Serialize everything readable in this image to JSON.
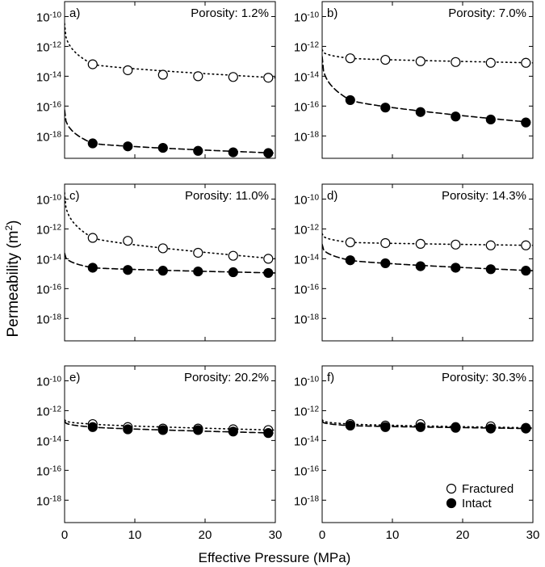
{
  "figure": {
    "ylabel_base": "Permeability (m",
    "ylabel_sup": "2",
    "ylabel_end": ")",
    "xlabel": "Effective Pressure (MPa)",
    "xticks": [
      "0",
      "10",
      "20",
      "30"
    ],
    "yticks": [
      {
        "exp": -10,
        "base": "10",
        "sup": "-10"
      },
      {
        "exp": -12,
        "base": "10",
        "sup": "-12"
      },
      {
        "exp": -14,
        "base": "10",
        "sup": "-14"
      },
      {
        "exp": -16,
        "base": "10",
        "sup": "-16"
      },
      {
        "exp": -18,
        "base": "10",
        "sup": "-18"
      }
    ],
    "legend": {
      "position": "bottom-right of panel f",
      "items": [
        {
          "label": "Fractured",
          "marker": "open-circle"
        },
        {
          "label": "Intact",
          "marker": "filled-circle"
        }
      ]
    }
  },
  "chart_data": [
    {
      "panel": "a)",
      "title": "Porosity: 1.2%",
      "type": "scatter",
      "xlim": [
        0,
        30
      ],
      "ylim_log10": [
        -19.5,
        -9
      ],
      "yscale": "log",
      "series": [
        {
          "name": "Fractured",
          "marker": "open-circle",
          "fit": "dotted",
          "x": [
            4,
            9,
            14,
            19,
            24,
            29
          ],
          "log10_y": [
            -13.2,
            -13.6,
            -13.9,
            -14.0,
            -14.05,
            -14.1
          ],
          "fit_log10_y_at_0": -10.4
        },
        {
          "name": "Intact",
          "marker": "filled-circle",
          "fit": "dashed",
          "x": [
            4,
            9,
            14,
            19,
            24,
            29
          ],
          "log10_y": [
            -18.5,
            -18.7,
            -18.8,
            -19.0,
            -19.1,
            -19.15
          ],
          "fit_log10_y_at_0": -16.2
        }
      ]
    },
    {
      "panel": "b)",
      "title": "Porosity: 7.0%",
      "type": "scatter",
      "xlim": [
        0,
        30
      ],
      "ylim_log10": [
        -19.5,
        -9
      ],
      "yscale": "log",
      "series": [
        {
          "name": "Fractured",
          "marker": "open-circle",
          "fit": "dotted",
          "x": [
            4,
            9,
            14,
            19,
            24,
            29
          ],
          "log10_y": [
            -12.8,
            -12.9,
            -13.0,
            -13.05,
            -13.1,
            -13.1
          ],
          "fit_log10_y_at_0": -12.2
        },
        {
          "name": "Intact",
          "marker": "filled-circle",
          "fit": "dashed",
          "x": [
            4,
            9,
            14,
            19,
            24,
            29
          ],
          "log10_y": [
            -15.6,
            -16.1,
            -16.4,
            -16.7,
            -16.9,
            -17.1
          ],
          "fit_log10_y_at_0": -12.6
        }
      ]
    },
    {
      "panel": "c)",
      "title": "Porosity: 11.0%",
      "type": "scatter",
      "xlim": [
        0,
        30
      ],
      "ylim_log10": [
        -19.5,
        -9
      ],
      "yscale": "log",
      "series": [
        {
          "name": "Fractured",
          "marker": "open-circle",
          "fit": "dotted",
          "x": [
            4,
            9,
            14,
            19,
            24,
            29
          ],
          "log10_y": [
            -12.6,
            -12.8,
            -13.3,
            -13.6,
            -13.8,
            -14.0
          ],
          "fit_log10_y_at_0": -9.5
        },
        {
          "name": "Intact",
          "marker": "filled-circle",
          "fit": "dashed",
          "x": [
            4,
            9,
            14,
            19,
            24,
            29
          ],
          "log10_y": [
            -14.6,
            -14.75,
            -14.8,
            -14.85,
            -14.9,
            -14.95
          ],
          "fit_log10_y_at_0": -13.6
        }
      ]
    },
    {
      "panel": "d)",
      "title": "Porosity: 14.3%",
      "type": "scatter",
      "xlim": [
        0,
        30
      ],
      "ylim_log10": [
        -19.5,
        -9
      ],
      "yscale": "log",
      "series": [
        {
          "name": "Fractured",
          "marker": "open-circle",
          "fit": "dotted",
          "x": [
            4,
            9,
            14,
            19,
            24,
            29
          ],
          "log10_y": [
            -12.9,
            -12.95,
            -13.0,
            -13.05,
            -13.1,
            -13.1
          ],
          "fit_log10_y_at_0": -12.3
        },
        {
          "name": "Intact",
          "marker": "filled-circle",
          "fit": "dashed",
          "x": [
            4,
            9,
            14,
            19,
            24,
            29
          ],
          "log10_y": [
            -14.1,
            -14.3,
            -14.5,
            -14.6,
            -14.7,
            -14.8
          ],
          "fit_log10_y_at_0": -13.0
        }
      ]
    },
    {
      "panel": "e)",
      "title": "Porosity: 20.2%",
      "type": "scatter",
      "xlim": [
        0,
        30
      ],
      "ylim_log10": [
        -19.5,
        -9
      ],
      "yscale": "log",
      "series": [
        {
          "name": "Fractured",
          "marker": "open-circle",
          "fit": "dotted",
          "x": [
            4,
            9,
            14,
            19,
            24,
            29
          ],
          "log10_y": [
            -12.9,
            -13.1,
            -13.2,
            -13.2,
            -13.25,
            -13.3
          ],
          "fit_log10_y_at_0": -12.6
        },
        {
          "name": "Intact",
          "marker": "filled-circle",
          "fit": "dashed",
          "x": [
            4,
            9,
            14,
            19,
            24,
            29
          ],
          "log10_y": [
            -13.1,
            -13.25,
            -13.3,
            -13.3,
            -13.4,
            -13.5
          ],
          "fit_log10_y_at_0": -12.7
        }
      ]
    },
    {
      "panel": "f)",
      "title": "Porosity: 30.3%",
      "type": "scatter",
      "xlim": [
        0,
        30
      ],
      "ylim_log10": [
        -19.5,
        -9
      ],
      "yscale": "log",
      "series": [
        {
          "name": "Fractured",
          "marker": "open-circle",
          "fit": "dotted",
          "x": [
            4,
            9,
            14,
            19,
            24,
            29
          ],
          "log10_y": [
            -12.9,
            -13.0,
            -12.9,
            -13.1,
            -13.05,
            -13.15
          ],
          "fit_log10_y_at_0": -12.6
        },
        {
          "name": "Intact",
          "marker": "filled-circle",
          "fit": "dashed",
          "x": [
            4,
            9,
            14,
            19,
            24,
            29
          ],
          "log10_y": [
            -13.0,
            -13.1,
            -13.1,
            -13.15,
            -13.2,
            -13.2
          ],
          "fit_log10_y_at_0": -12.7
        }
      ]
    }
  ]
}
